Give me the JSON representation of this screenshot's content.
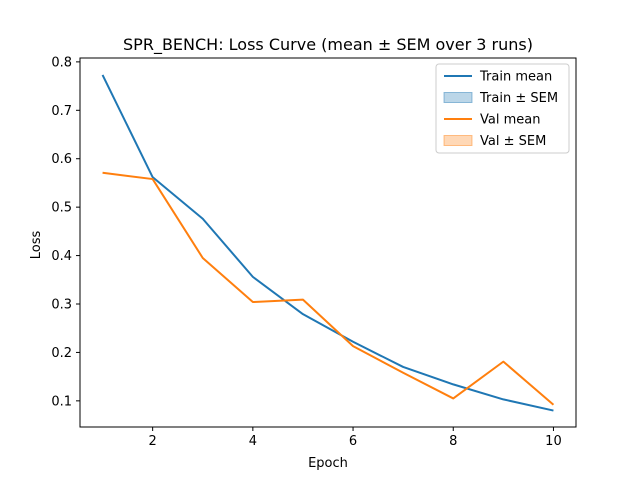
{
  "chart_data": {
    "type": "line",
    "title": "SPR_BENCH: Loss Curve (mean ± SEM over 3 runs)",
    "xlabel": "Epoch",
    "ylabel": "Loss",
    "xlim": [
      0.55,
      10.45
    ],
    "ylim": [
      0.046,
      0.808
    ],
    "xticks": [
      2,
      4,
      6,
      8,
      10
    ],
    "yticks": [
      0.1,
      0.2,
      0.3,
      0.4,
      0.5,
      0.6,
      0.7,
      0.8
    ],
    "grid": false,
    "legend_position": "top-right",
    "legend": [
      "Train mean",
      "Train ± SEM",
      "Val mean",
      "Val ± SEM"
    ],
    "x": [
      1,
      2,
      3,
      4,
      5,
      6,
      7,
      8,
      9,
      10
    ],
    "series": [
      {
        "name": "Train mean",
        "color": "#1f77b4",
        "values": [
          0.773,
          0.562,
          0.476,
          0.356,
          0.279,
          0.222,
          0.17,
          0.134,
          0.103,
          0.08
        ]
      },
      {
        "name": "Val mean",
        "color": "#ff7f0e",
        "values": [
          0.571,
          0.558,
          0.395,
          0.304,
          0.309,
          0.213,
          0.158,
          0.105,
          0.181,
          0.092
        ]
      }
    ],
    "sem_bands": [
      {
        "name": "Train ± SEM",
        "color": "#1f77b4",
        "opacity": 0.3
      },
      {
        "name": "Val ± SEM",
        "color": "#ff7f0e",
        "opacity": 0.3
      }
    ]
  }
}
